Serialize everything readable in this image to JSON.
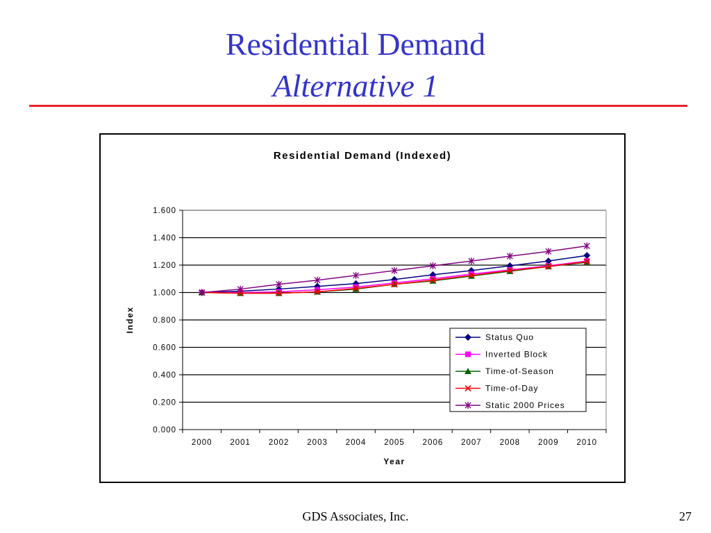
{
  "slide": {
    "title": "Residential Demand",
    "subtitle": "Alternative 1",
    "footer_company": "GDS Associates, Inc.",
    "page_number": "27"
  },
  "colors": {
    "title": "#3333cc",
    "rule": "#e8212b"
  },
  "chart_data": {
    "type": "line",
    "title": "Residential Demand (Indexed)",
    "xlabel": "Year",
    "ylabel": "Index",
    "categories": [
      "2000",
      "2001",
      "2002",
      "2003",
      "2004",
      "2005",
      "2006",
      "2007",
      "2008",
      "2009",
      "2010"
    ],
    "ylim": [
      0,
      1.6
    ],
    "yticks": [
      "0.000",
      "0.200",
      "0.400",
      "0.600",
      "0.800",
      "1.000",
      "1.200",
      "1.400",
      "1.600"
    ],
    "grid": true,
    "legend_position": "bottom-right",
    "series": [
      {
        "name": "Status Quo",
        "color": "#000080",
        "marker": "diamond",
        "values": [
          1.0,
          1.01,
          1.025,
          1.045,
          1.065,
          1.095,
          1.13,
          1.16,
          1.195,
          1.23,
          1.27
        ]
      },
      {
        "name": "Inverted Block",
        "color": "#ff00ff",
        "marker": "square",
        "values": [
          1.0,
          1.0,
          1.005,
          1.02,
          1.04,
          1.07,
          1.1,
          1.135,
          1.165,
          1.195,
          1.23
        ]
      },
      {
        "name": "Time-of-Season",
        "color": "#006400",
        "marker": "triangle",
        "values": [
          1.0,
          0.995,
          0.995,
          1.005,
          1.025,
          1.06,
          1.085,
          1.12,
          1.155,
          1.19,
          1.22
        ]
      },
      {
        "name": "Time-of-Day",
        "color": "#ff0000",
        "marker": "x",
        "values": [
          1.0,
          0.995,
          0.995,
          1.005,
          1.03,
          1.06,
          1.09,
          1.125,
          1.16,
          1.19,
          1.225
        ]
      },
      {
        "name": "Static 2000 Prices",
        "color": "#800080",
        "marker": "star",
        "values": [
          1.0,
          1.025,
          1.06,
          1.09,
          1.125,
          1.16,
          1.195,
          1.23,
          1.265,
          1.3,
          1.34
        ]
      }
    ]
  }
}
